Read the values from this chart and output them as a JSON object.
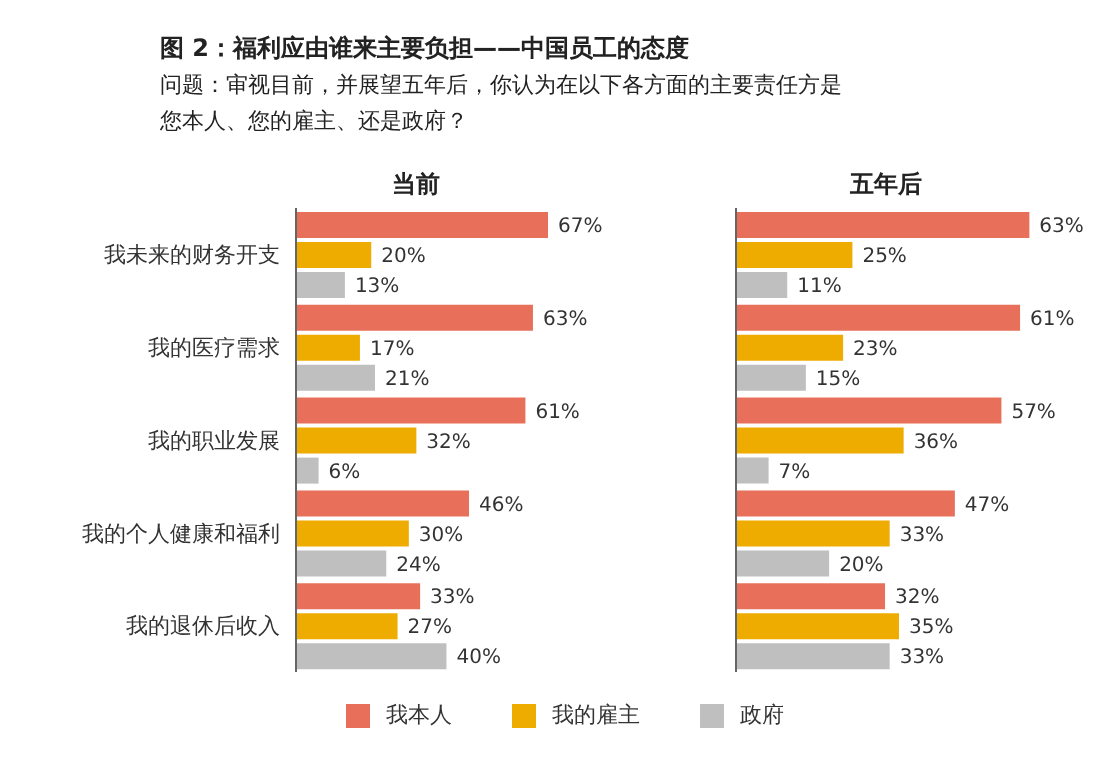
{
  "chart_data": [
    {
      "type": "bar",
      "orientation": "horizontal",
      "title": "当前",
      "annotations": [
        "图 2：福利应由谁来主要负担——中国员工的态度",
        "问题：审视目前，并展望五年后，你认为在以下各方面的主要责任方是您本人、您的雇主、还是政府？"
      ],
      "categories": [
        "我未来的财务开支",
        "我的医疗需求",
        "我的职业发展",
        "我的个人健康和福利",
        "我的退休后收入"
      ],
      "legend": "bottom",
      "series": [
        {
          "name": "我本人",
          "color": "#e8705a",
          "values": [
            67,
            63,
            61,
            46,
            33
          ],
          "value_labels": [
            "67%",
            "63%",
            "61%",
            "46%",
            "33%"
          ]
        },
        {
          "name": "我的雇主",
          "color": "#efac00",
          "values": [
            20,
            17,
            32,
            30,
            27
          ],
          "value_labels": [
            "20%",
            "17%",
            "32%",
            "30%",
            "27%"
          ]
        },
        {
          "name": "政府",
          "color": "#bfbfbf",
          "values": [
            13,
            21,
            6,
            24,
            40
          ],
          "value_labels": [
            "13%",
            "21%",
            "6%",
            "24%",
            "40%"
          ]
        }
      ]
    },
    {
      "type": "bar",
      "orientation": "horizontal",
      "title": "五年后",
      "categories": [
        null,
        null,
        null,
        null,
        null
      ],
      "series": [
        {
          "color": "#e8705a",
          "values": [
            63,
            61,
            57,
            47,
            32
          ],
          "value_labels": [
            "63%",
            "61%",
            "57%",
            "47%",
            "32%"
          ]
        },
        {
          "color": "#efac00",
          "values": [
            25,
            23,
            36,
            33,
            35
          ],
          "value_labels": [
            "25%",
            "23%",
            "36%",
            "33%",
            "35%"
          ]
        },
        {
          "color": "#bfbfbf",
          "values": [
            11,
            15,
            7,
            20,
            33
          ],
          "value_labels": [
            "11%",
            "15%",
            "7%",
            "20%",
            "33%"
          ]
        }
      ]
    }
  ]
}
